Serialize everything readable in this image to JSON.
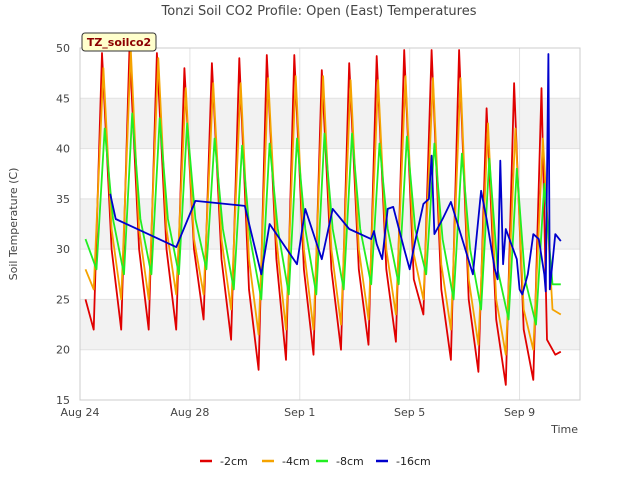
{
  "chart_data": {
    "type": "line",
    "title": "Tonzi Soil CO2 Profile: Open (East) Temperatures",
    "badge": "TZ_soilco2",
    "xlabel": "Time",
    "ylabel": "Soil Temperature (C)",
    "xlim": [
      0,
      18.2
    ],
    "ylim": [
      15,
      50
    ],
    "x_ticks": [
      {
        "x": 0,
        "label": "Aug 24"
      },
      {
        "x": 4,
        "label": "Aug 28"
      },
      {
        "x": 8,
        "label": "Sep 1"
      },
      {
        "x": 12,
        "label": "Sep 5"
      },
      {
        "x": 16,
        "label": "Sep 9"
      }
    ],
    "y_ticks": [
      15,
      20,
      25,
      30,
      35,
      40,
      45,
      50
    ],
    "shaded_bands": [
      [
        20,
        25
      ],
      [
        30,
        35
      ],
      [
        40,
        45
      ]
    ],
    "legend_position": "bottom",
    "series": [
      {
        "name": "-2cm",
        "color": "#e00000",
        "x": [
          0.2,
          0.5,
          0.8,
          1.15,
          1.5,
          1.8,
          2.15,
          2.5,
          2.8,
          3.15,
          3.5,
          3.8,
          4.15,
          4.5,
          4.8,
          5.15,
          5.5,
          5.8,
          6.15,
          6.5,
          6.8,
          7.15,
          7.5,
          7.8,
          8.15,
          8.5,
          8.8,
          9.15,
          9.5,
          9.8,
          10.15,
          10.5,
          10.8,
          11.15,
          11.5,
          11.8,
          12.15,
          12.5,
          12.8,
          13.15,
          13.5,
          13.8,
          14.15,
          14.5,
          14.8,
          15.15,
          15.5,
          15.8,
          16.15,
          16.5,
          16.8,
          17.0,
          17.3,
          17.5
        ],
        "y": [
          25,
          22,
          49.5,
          30,
          22,
          50,
          30,
          22,
          49.5,
          30,
          22,
          48,
          30,
          23,
          48.5,
          29,
          21,
          49,
          26,
          18,
          49.3,
          29,
          19,
          49.3,
          28,
          19.5,
          47.8,
          28,
          20,
          48.5,
          28,
          20.5,
          49.2,
          28,
          20.8,
          49.8,
          27,
          23.5,
          49.8,
          26,
          19,
          49.8,
          25,
          17.8,
          44,
          23,
          16.5,
          46.5,
          22,
          17,
          46,
          21,
          19.5,
          19.8
        ]
      },
      {
        "name": "-4cm",
        "color": "#f5a300",
        "x": [
          0.2,
          0.5,
          0.85,
          1.15,
          1.5,
          1.85,
          2.15,
          2.5,
          2.85,
          3.15,
          3.5,
          3.85,
          4.15,
          4.5,
          4.85,
          5.15,
          5.5,
          5.85,
          6.15,
          6.5,
          6.85,
          7.15,
          7.5,
          7.85,
          8.15,
          8.5,
          8.85,
          9.15,
          9.5,
          9.85,
          10.15,
          10.5,
          10.85,
          11.15,
          11.5,
          11.85,
          12.15,
          12.5,
          12.85,
          13.15,
          13.5,
          13.85,
          14.15,
          14.5,
          14.85,
          15.15,
          15.5,
          15.85,
          16.15,
          16.5,
          16.85,
          17.2,
          17.5
        ],
        "y": [
          28,
          26,
          48,
          32,
          25,
          49.8,
          32,
          25,
          49,
          32,
          25.5,
          46,
          31,
          25.5,
          46.5,
          31,
          24,
          46.5,
          29,
          21.5,
          47,
          31,
          22,
          47.2,
          30,
          22,
          47.2,
          30,
          22.5,
          46.8,
          30,
          23,
          46.8,
          30,
          23.5,
          47.2,
          29.5,
          25,
          47,
          28.5,
          22,
          47,
          27,
          20.5,
          42.5,
          25,
          19.5,
          42,
          24,
          20,
          41,
          24,
          23.5
        ]
      },
      {
        "name": "-8cm",
        "color": "#22ee22",
        "x": [
          0.2,
          0.6,
          0.9,
          1.2,
          1.6,
          1.9,
          2.2,
          2.6,
          2.9,
          3.2,
          3.6,
          3.9,
          4.2,
          4.6,
          4.9,
          5.2,
          5.6,
          5.9,
          6.2,
          6.6,
          6.9,
          7.2,
          7.6,
          7.9,
          8.2,
          8.6,
          8.9,
          9.2,
          9.6,
          9.9,
          10.2,
          10.6,
          10.9,
          11.2,
          11.6,
          11.9,
          12.2,
          12.6,
          12.9,
          13.2,
          13.6,
          13.9,
          14.2,
          14.6,
          14.9,
          15.2,
          15.6,
          15.9,
          16.2,
          16.6,
          16.9,
          17.2,
          17.5
        ],
        "y": [
          31,
          28,
          42,
          33,
          27.5,
          43.5,
          33,
          27.5,
          43,
          33,
          27.5,
          42.5,
          33,
          28,
          41,
          32,
          26,
          40.3,
          31,
          25,
          40.5,
          32,
          25.5,
          41,
          32,
          25.5,
          41.5,
          32,
          26,
          41.5,
          32,
          26.5,
          40.5,
          32,
          26.5,
          41.2,
          32,
          27.5,
          40.5,
          31,
          25,
          39.5,
          30,
          24,
          39,
          28,
          23,
          38,
          27,
          22.5,
          36.5,
          26.5,
          26.5
        ]
      },
      {
        "name": "-16cm",
        "color": "#0000cc",
        "x": [
          1.1,
          1.3,
          3.5,
          4.2,
          6.0,
          6.6,
          6.9,
          7.9,
          8.2,
          8.8,
          9.2,
          9.8,
          10.6,
          10.7,
          10.8,
          11.0,
          11.2,
          11.4,
          11.8,
          12.0,
          12.2,
          12.5,
          12.7,
          12.8,
          12.9,
          13.2,
          13.5,
          14.3,
          14.6,
          14.8,
          15.1,
          15.2,
          15.3,
          15.4,
          15.5,
          15.9,
          16.0,
          16.1,
          16.3,
          16.5,
          16.7,
          16.9,
          16.95,
          17.05,
          17.1,
          17.3,
          17.5
        ],
        "y": [
          35.5,
          33,
          30.2,
          34.8,
          34.3,
          27.5,
          32.5,
          28.5,
          34,
          29,
          34,
          32,
          31,
          31.8,
          30.5,
          29,
          34,
          34.2,
          30,
          28,
          30.8,
          34.5,
          35,
          39.3,
          31.5,
          33,
          34.7,
          27.5,
          35.8,
          33,
          28,
          27,
          38.8,
          28.5,
          32,
          29,
          26,
          25.5,
          27.5,
          31.5,
          31,
          27.5,
          25.8,
          49.4,
          26,
          31.5,
          30.8
        ]
      }
    ]
  }
}
